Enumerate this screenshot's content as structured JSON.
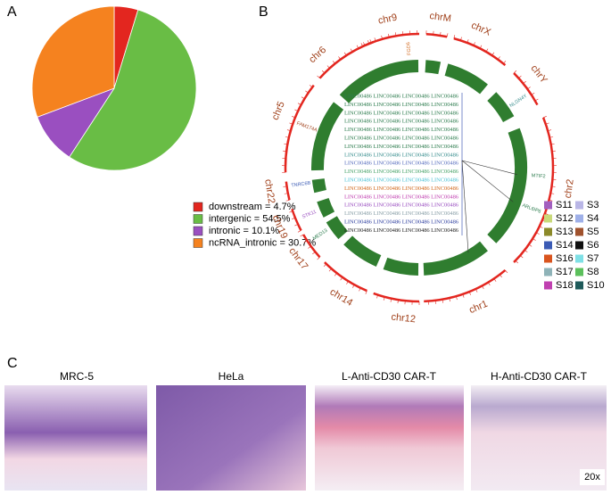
{
  "panel_labels": [
    "A",
    "B",
    "C"
  ],
  "chart_data": {
    "type": "pie",
    "values": [
      4.7,
      54.5,
      10.1,
      30.7
    ],
    "value_labels": [
      "downstream = 4.7%",
      "intergenic = 54.5%",
      "intronic = 10.1%",
      "ncRNA_intronic = 30.7%"
    ],
    "colors": [
      "#e3261f",
      "#69bd45",
      "#9a4fc0",
      "#f5821f"
    ]
  },
  "circos": {
    "chromosomes": [
      "chr9",
      "chrM",
      "chrX",
      "chrY",
      "chr2",
      "chr1",
      "chr12",
      "chr14",
      "chr17",
      "chr19",
      "chr22",
      "chr5",
      "chr6"
    ],
    "genes": [
      "FGD6",
      "NLGN4Y",
      "MTIF2",
      "ARL6IP6",
      "TNRC6B",
      "FAM174A",
      "STK11",
      "MED13"
    ],
    "center_rows": [
      {
        "text": "LINC00486 LINC00486 LINC00486 LINC00486",
        "color": "#2e7d4f"
      },
      {
        "text": "LINC00486 LINC00486 LINC00486 LINC00486",
        "color": "#2e7d4f"
      },
      {
        "text": "LINC00486 LINC00486 LINC00486 LINC00486",
        "color": "#2e7d4f"
      },
      {
        "text": "LINC00486 LINC00486 LINC00486 LINC00486",
        "color": "#2e7d4f"
      },
      {
        "text": "LINC00486 LINC00486 LINC00486 LINC00486",
        "color": "#2e7d4f"
      },
      {
        "text": "LINC00486 LINC00486 LINC00486 LINC00486",
        "color": "#2e7d4f"
      },
      {
        "text": "LINC00486 LINC00486 LINC00486 LINC00486",
        "color": "#2e7d4f"
      },
      {
        "text": "LINC00486 LINC00486 LINC00486 LINC00486",
        "color": "#3a8f8f"
      },
      {
        "text": "LINC00486 LINC00486 LINC00486 LINC00486",
        "color": "#5a6fbf"
      },
      {
        "text": "LINC00486 LINC00486 LINC00486 LINC00486",
        "color": "#4aa36a"
      },
      {
        "text": "LINC00486 LINC00486 LINC00486 LINC00486",
        "color": "#4fc3d6"
      },
      {
        "text": "LINC00486 LINC00486 LINC00486 LINC00486",
        "color": "#d2691e"
      },
      {
        "text": "LINC00486 LINC00486 LINC00486 LINC00486",
        "color": "#c040b0"
      },
      {
        "text": "LINC00486 LINC00486 LINC00486 LINC00486",
        "color": "#9a4fc0"
      },
      {
        "text": "LINC00486 LINC00486 LINC00486 LINC00486",
        "color": "#8aa0a8"
      },
      {
        "text": "LINC00486 LINC00486 LINC00486 LINC00486",
        "color": "#3040a0"
      },
      {
        "text": "LINC00486 LINC00486 LINC00486 LINC00486",
        "color": "#222222"
      }
    ],
    "legend": [
      {
        "name": "S11",
        "color": "#a25fbf"
      },
      {
        "name": "S3",
        "color": "#b9b6e6"
      },
      {
        "name": "S12",
        "color": "#c9d97a"
      },
      {
        "name": "S4",
        "color": "#9fb0e8"
      },
      {
        "name": "S13",
        "color": "#8c8a2a"
      },
      {
        "name": "S5",
        "color": "#a0522d"
      },
      {
        "name": "S14",
        "color": "#3b5bb5"
      },
      {
        "name": "S6",
        "color": "#111111"
      },
      {
        "name": "S16",
        "color": "#d9541e"
      },
      {
        "name": "S7",
        "color": "#7fe0e6"
      },
      {
        "name": "S17",
        "color": "#8fb3b8"
      },
      {
        "name": "S8",
        "color": "#5cc05c"
      },
      {
        "name": "S18",
        "color": "#c040b0"
      },
      {
        "name": "S10",
        "color": "#1f5a5a"
      }
    ]
  },
  "histology": {
    "titles": [
      "MRC-5",
      "HeLa",
      "L-Anti-CD30 CAR-T",
      "H-Anti-CD30 CAR-T"
    ],
    "scale_label": "20x"
  }
}
